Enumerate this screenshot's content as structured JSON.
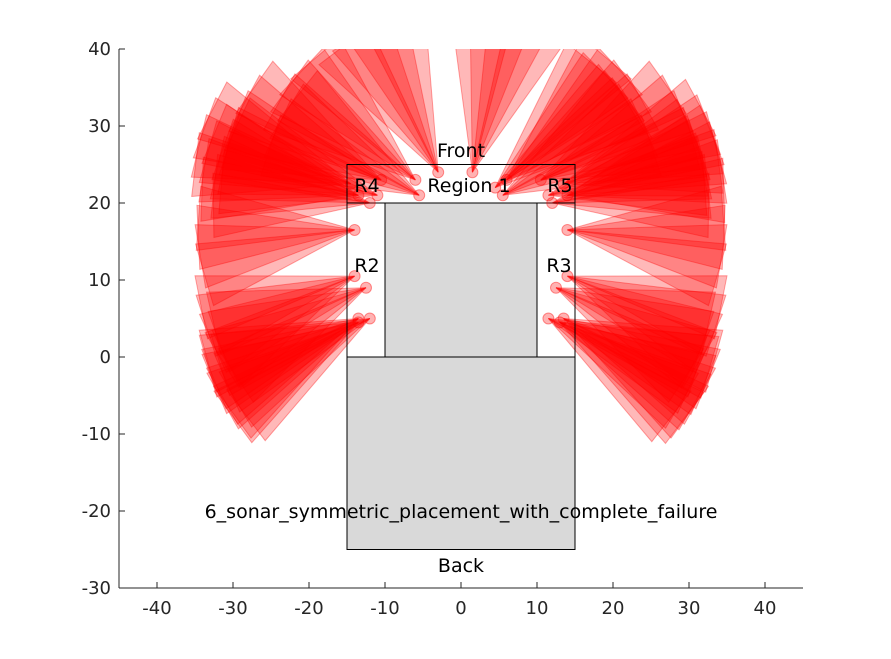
{
  "chart_data": {
    "type": "diagram",
    "title": "6_sonar_symmetric_placement_with_complete_failure",
    "xlim": [
      -45,
      45
    ],
    "ylim": [
      -30,
      40
    ],
    "xticks": [
      -40,
      -30,
      -20,
      -10,
      0,
      10,
      20,
      30,
      40
    ],
    "yticks": [
      -30,
      -20,
      -10,
      0,
      10,
      20,
      30,
      40
    ],
    "grid": false,
    "labels": {
      "front": "Front",
      "back": "Back",
      "region1": "Region 1",
      "r2": "R2",
      "r3": "R3",
      "r4": "R4",
      "r5": "R5"
    },
    "colors": {
      "sonar_fill": "#ff0000",
      "body_fill": "#d9d9d9",
      "outline": "#000000"
    },
    "rects": [
      {
        "name": "rear-body",
        "x0": -15,
        "x1": 15,
        "y0": -25,
        "y1": 0,
        "fill": true
      },
      {
        "name": "front-body",
        "x0": -10,
        "x1": 10,
        "y0": 0,
        "y1": 20,
        "fill": true
      },
      {
        "name": "region-r2",
        "x0": -15,
        "x1": -10,
        "y0": 0,
        "y1": 20,
        "fill": false
      },
      {
        "name": "region-r3",
        "x0": 10,
        "x1": 15,
        "y0": 0,
        "y1": 20,
        "fill": false
      },
      {
        "name": "region-top",
        "x0": -15,
        "x1": 15,
        "y0": 20,
        "y1": 25,
        "fill": false
      }
    ],
    "sonar_origins": [
      [
        -13.5,
        4.5
      ],
      [
        -12,
        5
      ],
      [
        -13.5,
        5
      ],
      [
        -12.5,
        9
      ],
      [
        -14,
        10.5
      ],
      [
        -14,
        16.5
      ],
      [
        -12,
        20
      ],
      [
        -13.5,
        21
      ],
      [
        -14.5,
        22.5
      ],
      [
        -10.5,
        23
      ],
      [
        -11,
        21
      ],
      [
        -5.5,
        21
      ],
      [
        -6,
        23
      ],
      [
        -3,
        24
      ],
      [
        1.5,
        24
      ],
      [
        4.5,
        22
      ],
      [
        5.5,
        21
      ],
      [
        6,
        23
      ],
      [
        10.5,
        23
      ],
      [
        11.5,
        21
      ],
      [
        12,
        20
      ],
      [
        14,
        21
      ],
      [
        13.5,
        22.5
      ],
      [
        14,
        16.5
      ],
      [
        14,
        10.5
      ],
      [
        12.5,
        9
      ],
      [
        13.5,
        5
      ],
      [
        11.5,
        5
      ],
      [
        13,
        4.5
      ]
    ]
  }
}
